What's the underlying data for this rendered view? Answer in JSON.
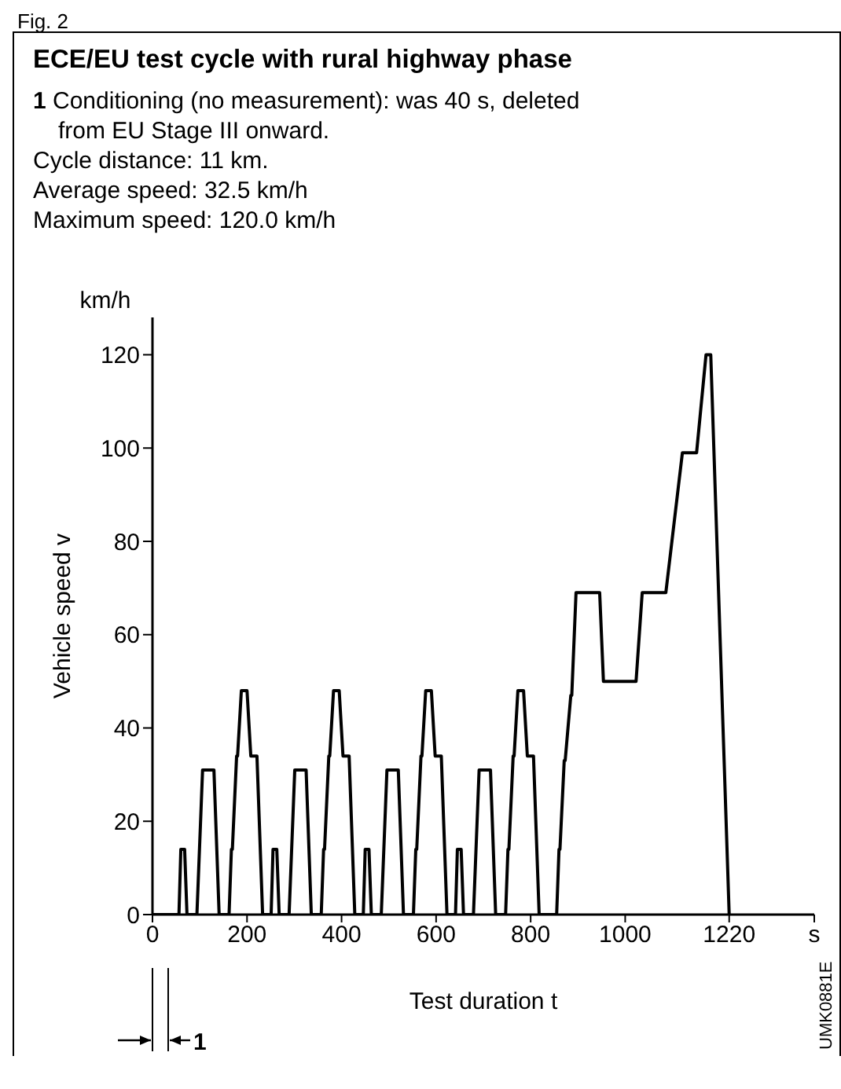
{
  "chart_data": {
    "type": "line",
    "title": "ECE/EU test cycle with rural highway phase",
    "xlabel": "Test duration t",
    "ylabel": "Vehicle speed v",
    "annotations": [
      "Fig. 2",
      "1 Conditioning (no measurement): was 40 s, deleted from EU Stage III onward.",
      "Cycle distance: 11 km.",
      "Average speed: 32.5 km/h",
      "Maximum speed: 120.0 km/h",
      "km/h",
      "1",
      "UMK0881E"
    ],
    "xlim": [
      0,
      1400
    ],
    "ylim": [
      0,
      128
    ],
    "xticks": [
      0,
      200,
      400,
      600,
      800,
      1000,
      1220,
      {
        "value": 1400,
        "label": "s"
      }
    ],
    "yticks": [
      0,
      20,
      40,
      60,
      80,
      100,
      120
    ],
    "marker": "none",
    "line_style": "solid",
    "series": [
      {
        "color": "#000000",
        "x": [
          0,
          45,
          56,
          60,
          68,
          73,
          94,
          106,
          130,
          141,
          162,
          167,
          169,
          178,
          180,
          188,
          200,
          208,
          221,
          233,
          251,
          255,
          263,
          268,
          289,
          301,
          325,
          336,
          357,
          362,
          364,
          373,
          375,
          383,
          395,
          403,
          416,
          428,
          446,
          450,
          458,
          463,
          484,
          496,
          520,
          531,
          552,
          557,
          559,
          568,
          570,
          578,
          590,
          598,
          611,
          623,
          641,
          645,
          653,
          658,
          679,
          691,
          715,
          726,
          747,
          752,
          754,
          763,
          765,
          773,
          785,
          793,
          806,
          818,
          855,
          860,
          862,
          871,
          873,
          885,
          887,
          896,
          946,
          954,
          1023,
          1036,
          1086,
          1121,
          1151,
          1171,
          1181,
          1220
        ],
        "values": [
          0,
          0,
          0,
          14,
          14,
          0,
          0,
          31,
          31,
          0,
          0,
          14,
          14,
          34,
          34,
          48,
          48,
          34,
          34,
          0,
          0,
          14,
          14,
          0,
          0,
          31,
          31,
          0,
          0,
          14,
          14,
          34,
          34,
          48,
          48,
          34,
          34,
          0,
          0,
          14,
          14,
          0,
          0,
          31,
          31,
          0,
          0,
          14,
          14,
          34,
          34,
          48,
          48,
          34,
          34,
          0,
          0,
          14,
          14,
          0,
          0,
          31,
          31,
          0,
          0,
          14,
          14,
          34,
          34,
          48,
          48,
          34,
          34,
          0,
          0,
          14,
          14,
          33,
          33,
          47,
          47,
          69,
          69,
          50,
          50,
          69,
          69,
          99,
          99,
          120,
          120,
          0
        ]
      }
    ]
  }
}
